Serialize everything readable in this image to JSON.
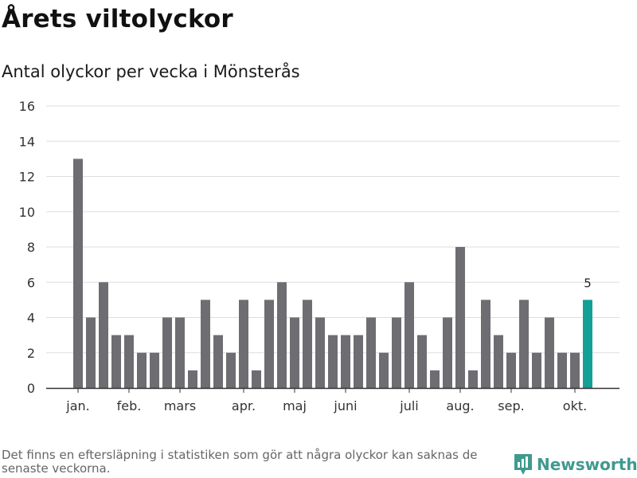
{
  "title": "Årets viltolyckor",
  "subtitle": "Antal olyckor per vecka i Mönsterås",
  "footnote": "Det finns en eftersläpning i statistiken som gör att några olyckor kan saknas de senaste veckorna.",
  "brand": {
    "name": "Newsworthy",
    "color": "#3f9a8e"
  },
  "colors": {
    "bar": "#6e6d72",
    "highlight": "#13a096",
    "grid": "#dddddd",
    "axis": "#333333"
  },
  "chart_data": {
    "type": "bar",
    "title": "Antal olyckor per vecka i Mönsterås",
    "xlabel": "",
    "ylabel": "",
    "ylim": [
      0,
      16
    ],
    "yticks": [
      0,
      2,
      4,
      6,
      8,
      10,
      12,
      14,
      16
    ],
    "grid": true,
    "values": [
      13,
      4,
      6,
      3,
      3,
      2,
      2,
      4,
      4,
      1,
      5,
      3,
      2,
      5,
      1,
      5,
      6,
      4,
      5,
      4,
      3,
      3,
      3,
      4,
      2,
      4,
      6,
      3,
      1,
      4,
      8,
      1,
      5,
      3,
      2,
      5,
      2,
      4,
      2,
      2,
      5
    ],
    "highlight_index": 40,
    "highlight_label": "5",
    "month_ticks": [
      {
        "label": "jan.",
        "index": 0
      },
      {
        "label": "feb.",
        "index": 4
      },
      {
        "label": "mars",
        "index": 8
      },
      {
        "label": "apr.",
        "index": 13
      },
      {
        "label": "maj",
        "index": 17
      },
      {
        "label": "juni",
        "index": 21
      },
      {
        "label": "juli",
        "index": 26
      },
      {
        "label": "aug.",
        "index": 30
      },
      {
        "label": "sep.",
        "index": 34
      },
      {
        "label": "okt.",
        "index": 39
      }
    ]
  }
}
